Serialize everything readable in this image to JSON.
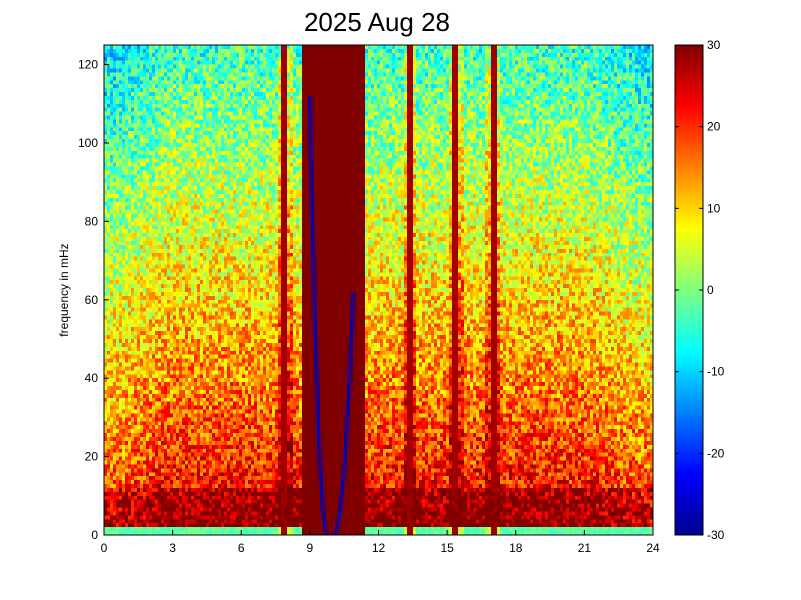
{
  "chart_data": {
    "type": "heatmap",
    "title": "2025 Aug 28",
    "xlabel": "",
    "ylabel": "frequency in mHz",
    "xlim": [
      0,
      24
    ],
    "ylim": [
      0,
      125
    ],
    "x_ticks": [
      "0",
      "3",
      "6",
      "9",
      "12",
      "15",
      "18",
      "21",
      "24"
    ],
    "y_ticks": [
      "0",
      "20",
      "40",
      "60",
      "80",
      "100",
      "120"
    ],
    "colorbar": {
      "range": [
        -30,
        30
      ],
      "ticks": [
        "-30",
        "-20",
        "-10",
        "0",
        "10",
        "20",
        "30"
      ],
      "colormap": "jet"
    },
    "grid": false,
    "description_of_features": {
      "saturated_block_hours": [
        8.7,
        11.4
      ],
      "narrow_high_lines_hours": [
        7.9,
        13.4,
        15.4,
        17.0
      ],
      "dark_edge_curves": [
        {
          "hour_start": 9.0,
          "hour_end": 9.8,
          "top_mHz": 112
        },
        {
          "hour_start": 10.9,
          "hour_end": 10.0,
          "top_mHz": 62
        }
      ]
    }
  }
}
